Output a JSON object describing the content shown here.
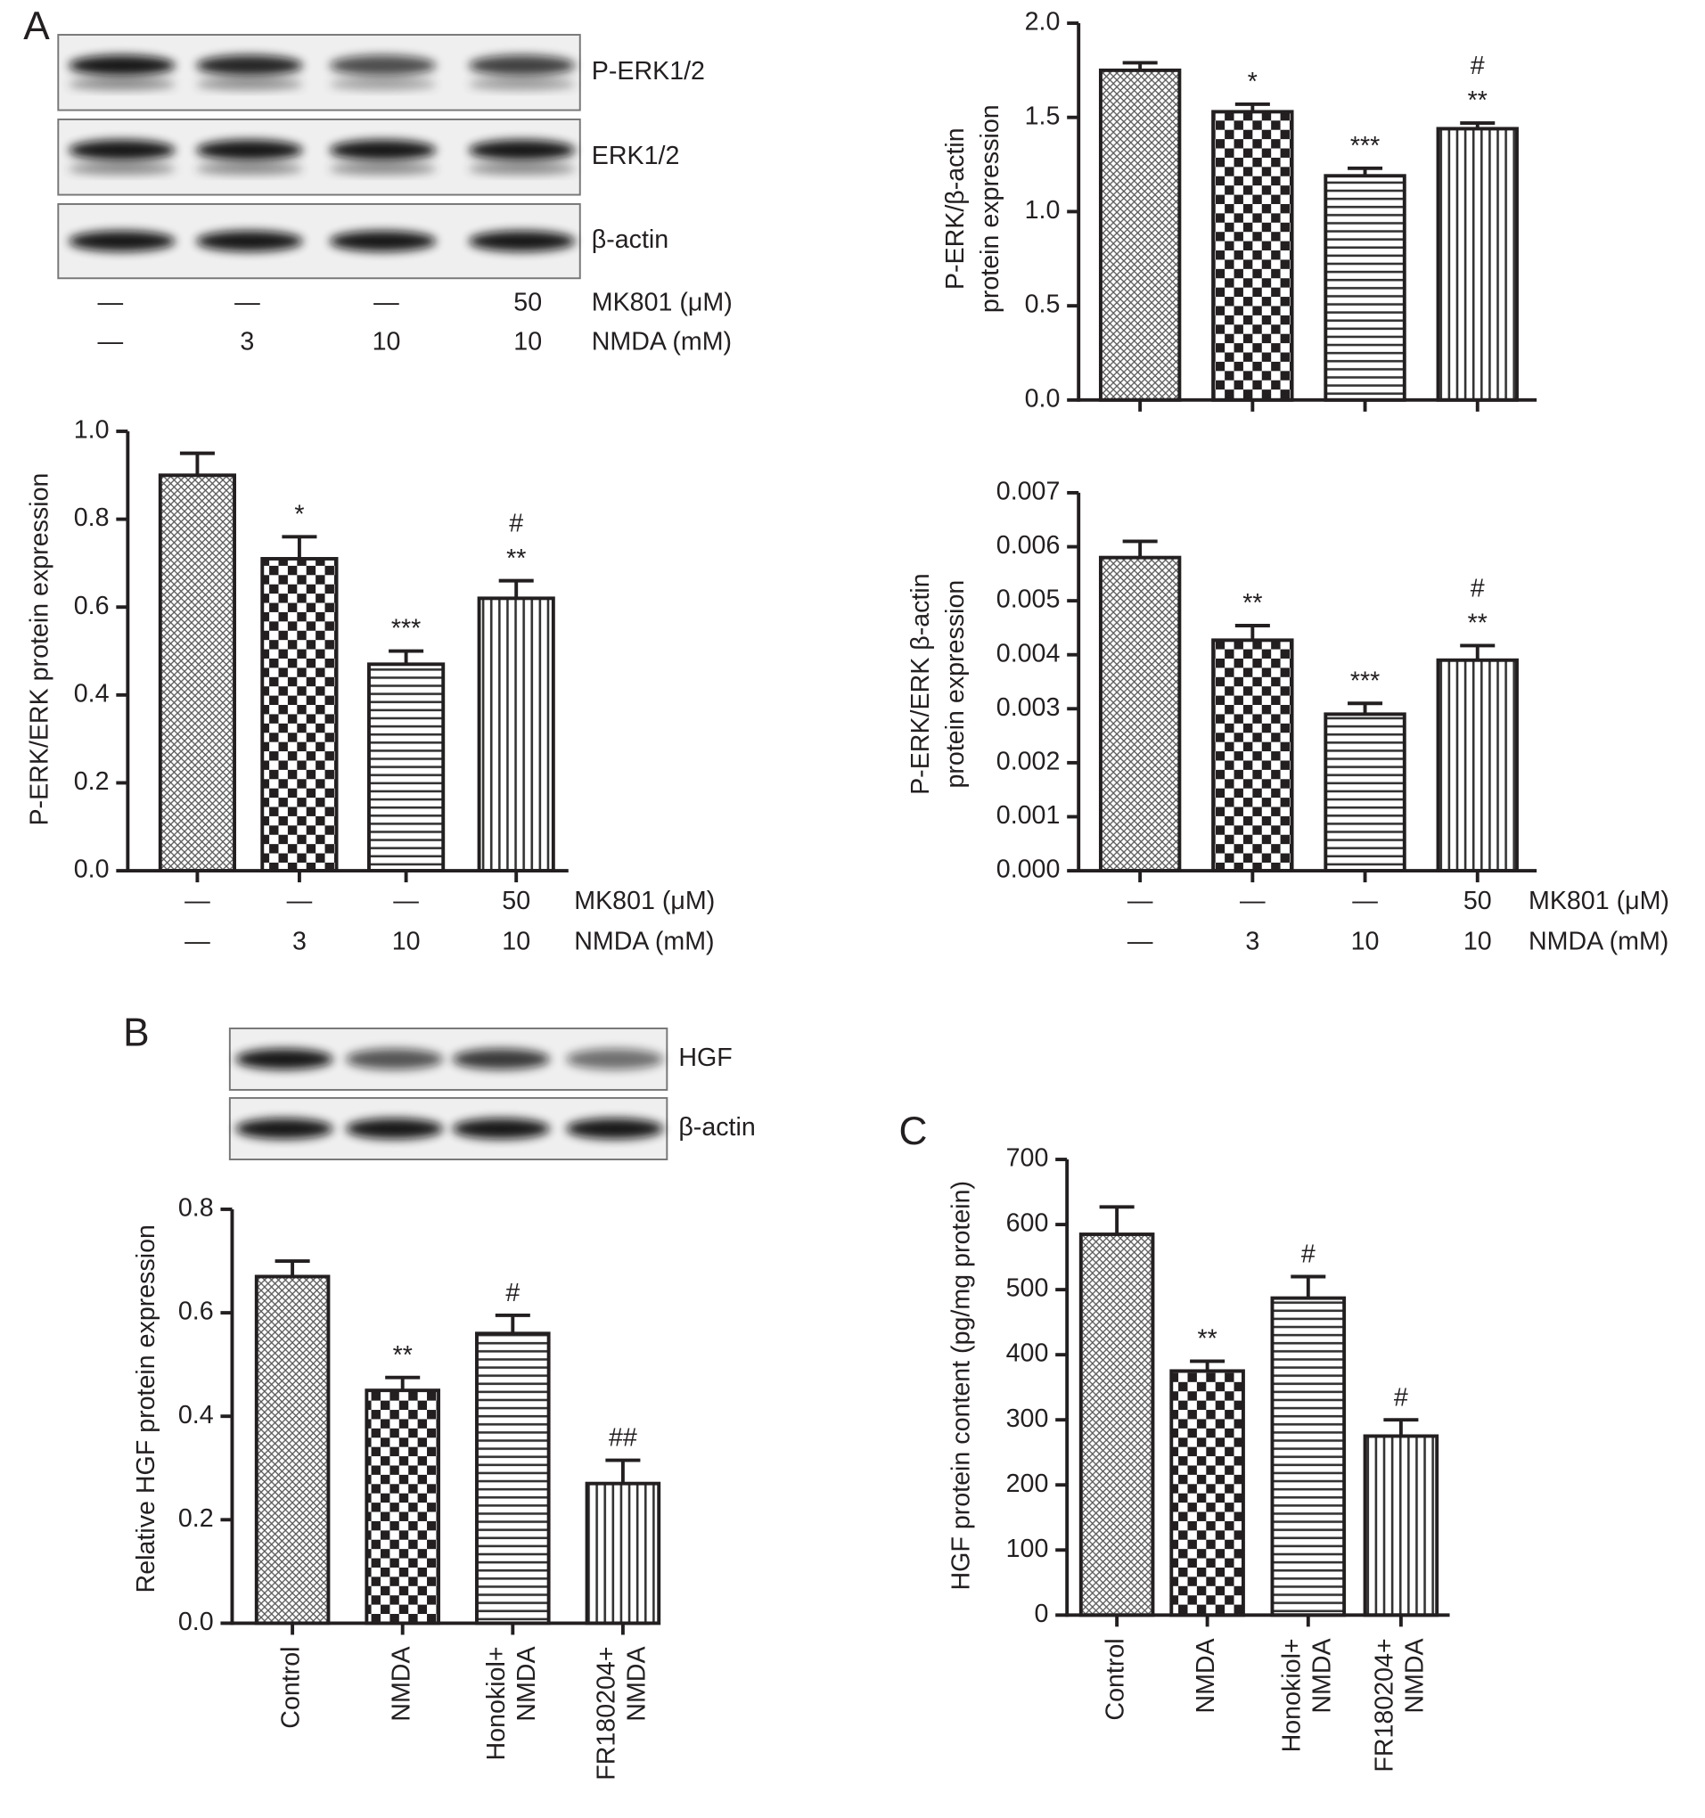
{
  "panel_labels": [
    "A",
    "B",
    "C"
  ],
  "blots": [
    {
      "rows": [
        "P-ERK1/2",
        "ERK1/2",
        "β-actin"
      ],
      "conditions": [
        {
          "name": "MK801 (μM)",
          "labels": [
            "—",
            "—",
            "—",
            "50"
          ]
        },
        {
          "name": "NMDA (mM)",
          "labels": [
            "—",
            "3",
            "10",
            "10"
          ]
        }
      ]
    },
    {
      "rows": [
        "HGF",
        "β-actin"
      ]
    }
  ],
  "chart_data": [
    {
      "type": "bar",
      "ylabel": [
        "P-ERK/ERK protein expression"
      ],
      "values": [
        0.9,
        0.71,
        0.47,
        0.62
      ],
      "errors": [
        0.05,
        0.05,
        0.03,
        0.04
      ],
      "annotations": [
        [],
        [
          "*"
        ],
        [
          "***"
        ],
        [
          "#",
          "**"
        ]
      ],
      "patterns": [
        "crosshatch",
        "checker",
        "hlines",
        "vlines"
      ],
      "color": "#231f20",
      "ylim": [
        0,
        1
      ],
      "yticks": [
        {
          "value": 0,
          "label": "0.0"
        },
        0.2,
        0.4,
        0.6,
        0.8,
        {
          "value": 1,
          "label": "1.0"
        }
      ],
      "conditions": [
        {
          "name": "MK801 (μM)",
          "labels": [
            "—",
            "—",
            "—",
            "50"
          ]
        },
        {
          "name": "NMDA (mM)",
          "labels": [
            "—",
            "3",
            "10",
            "10"
          ]
        }
      ]
    },
    {
      "type": "bar",
      "ylabel": [
        "P-ERK/β-actin",
        "protein expression"
      ],
      "values": [
        1.75,
        1.53,
        1.19,
        1.44
      ],
      "errors": [
        0.04,
        0.04,
        0.04,
        0.03
      ],
      "annotations": [
        [],
        [
          "*"
        ],
        [
          "***"
        ],
        [
          "#",
          "**"
        ]
      ],
      "patterns": [
        "crosshatch",
        "checker",
        "hlines",
        "vlines"
      ],
      "color": "#231f20",
      "ylim": [
        0,
        2
      ],
      "yticks": [
        {
          "value": 0,
          "label": "0.0"
        },
        0.5,
        {
          "value": 1,
          "label": "1.0"
        },
        1.5,
        {
          "value": 2,
          "label": "2.0"
        }
      ]
    },
    {
      "type": "bar",
      "ylabel": [
        "P-ERK/ERK β-actin",
        "protein expression"
      ],
      "values": [
        0.0058,
        0.00427,
        0.0029,
        0.0039
      ],
      "errors": [
        0.0003,
        0.00027,
        0.0002,
        0.00027
      ],
      "annotations": [
        [],
        [
          "**"
        ],
        [
          "***"
        ],
        [
          "#",
          "**"
        ]
      ],
      "patterns": [
        "crosshatch",
        "checker",
        "hlines",
        "vlines"
      ],
      "color": "#231f20",
      "ylim": [
        0,
        0.007
      ],
      "yticks": [
        {
          "value": 0,
          "label": "0.000"
        },
        0.001,
        0.002,
        0.003,
        0.004,
        0.005,
        0.006,
        0.007
      ],
      "conditions": [
        {
          "name": "MK801 (μM)",
          "labels": [
            "—",
            "—",
            "—",
            "50"
          ]
        },
        {
          "name": "NMDA (mM)",
          "labels": [
            "—",
            "3",
            "10",
            "10"
          ]
        }
      ]
    },
    {
      "type": "bar",
      "ylabel": [
        "Relative HGF protein expression"
      ],
      "categories": [
        [
          "Control"
        ],
        [
          "NMDA"
        ],
        [
          "Honokiol+",
          "NMDA"
        ],
        [
          "FR180204+",
          "NMDA"
        ]
      ],
      "values": [
        0.67,
        0.45,
        0.56,
        0.27
      ],
      "errors": [
        0.03,
        0.025,
        0.035,
        0.045
      ],
      "annotations": [
        [],
        [
          "**"
        ],
        [
          "#"
        ],
        [
          "##"
        ]
      ],
      "patterns": [
        "crosshatch",
        "checker",
        "hlines",
        "vlines"
      ],
      "color": "#231f20",
      "ylim": [
        0,
        0.8
      ],
      "yticks": [
        {
          "value": 0,
          "label": "0.0"
        },
        0.2,
        0.4,
        0.6,
        0.8
      ]
    },
    {
      "type": "bar",
      "ylabel": [
        "HGF protein content (pg/mg protein)"
      ],
      "categories": [
        [
          "Control"
        ],
        [
          "NMDA"
        ],
        [
          "Honokiol+",
          "NMDA"
        ],
        [
          "FR180204+",
          "NMDA"
        ]
      ],
      "values": [
        585,
        375,
        487,
        275
      ],
      "errors": [
        42,
        15,
        33,
        25
      ],
      "annotations": [
        [],
        [
          "**"
        ],
        [
          "#"
        ],
        [
          "#"
        ]
      ],
      "patterns": [
        "crosshatch",
        "checker",
        "hlines",
        "vlines"
      ],
      "color": "#231f20",
      "ylim": [
        0,
        700
      ],
      "yticks": [
        0,
        100,
        200,
        300,
        400,
        500,
        600,
        700
      ]
    }
  ]
}
